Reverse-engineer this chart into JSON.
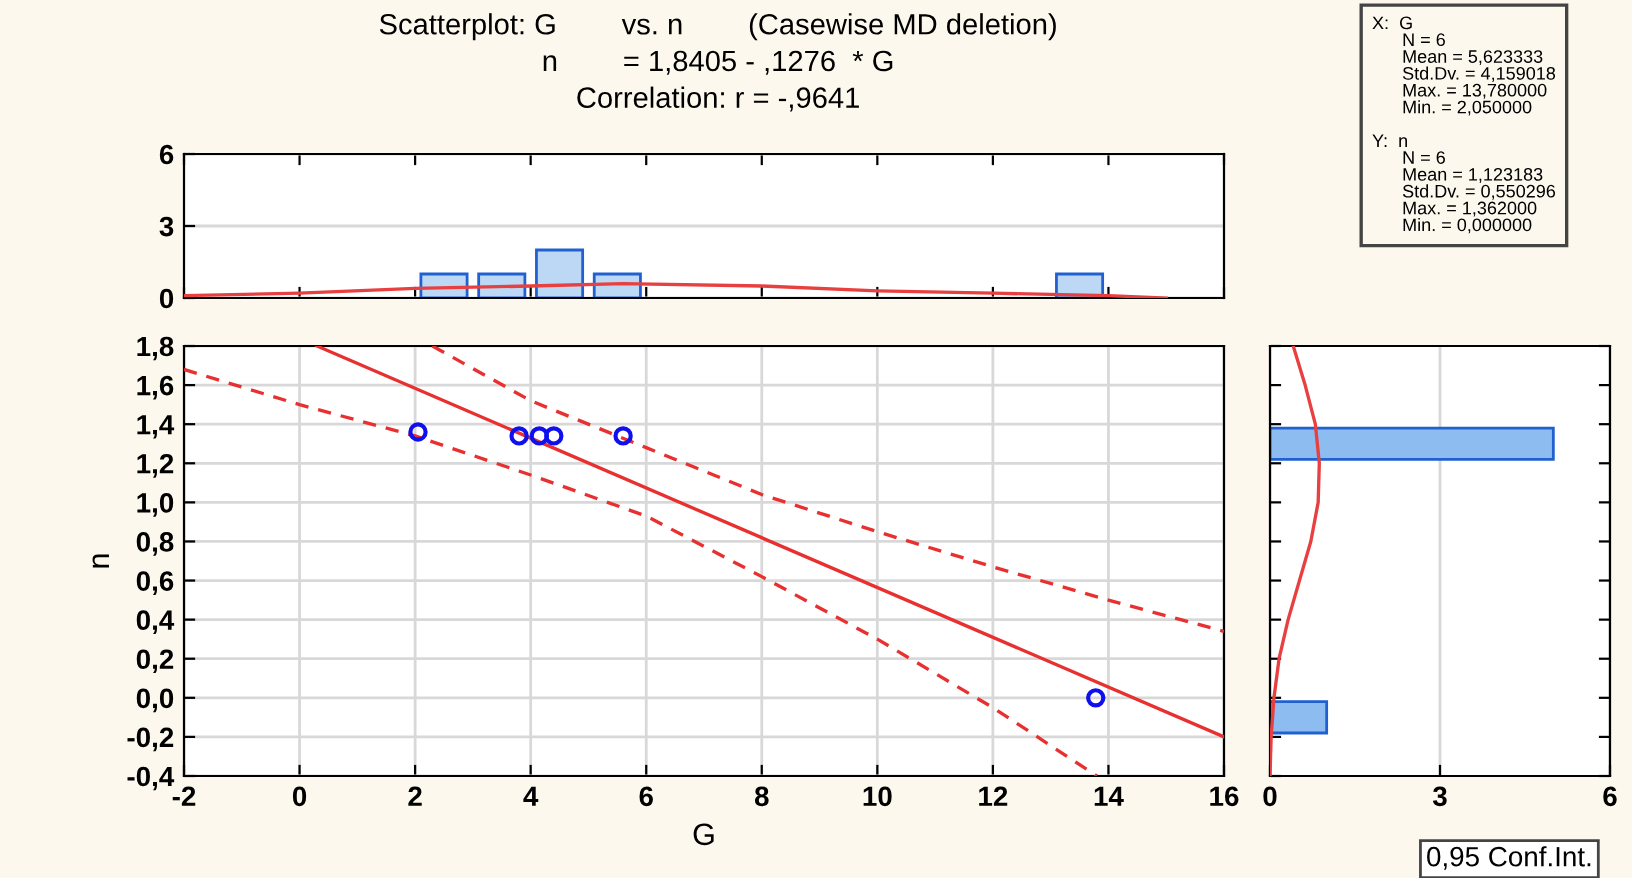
{
  "chart_data": [
    {
      "type": "histogram",
      "title": "Scatterplot: G        vs. n        (Casewise MD deletion)\nn        = 1,8405 - ,1276  * G\nCorrelation: r = -,9641",
      "bins": [
        2,
        3,
        4,
        5,
        6,
        7,
        8,
        9,
        10,
        11,
        12,
        13,
        14
      ],
      "values": [
        1,
        1,
        2,
        1,
        0,
        0,
        0,
        0,
        0,
        0,
        0,
        1
      ],
      "color": "#bcd8f5",
      "xlim": [
        -2,
        16
      ],
      "xticks": [
        {
          "value": -2,
          "label": null
        },
        {
          "value": 0,
          "label": null
        },
        {
          "value": 2,
          "label": null
        },
        {
          "value": 4,
          "label": null
        },
        {
          "value": 6,
          "label": null
        },
        {
          "value": 8,
          "label": null
        },
        {
          "value": 10,
          "label": null
        },
        {
          "value": 12,
          "label": null
        },
        {
          "value": 14,
          "label": null
        },
        {
          "value": 16,
          "label": null
        }
      ],
      "ylim": [
        0,
        6
      ],
      "yticks": [
        0,
        3,
        6
      ],
      "grid": "y",
      "tick_labels": "y",
      "series": [
        {
          "type": "line",
          "x": [
            -2,
            0,
            2,
            4,
            5.6,
            8,
            10,
            12,
            14,
            15
          ],
          "values": [
            0.1,
            0.2,
            0.4,
            0.5,
            0.6,
            0.5,
            0.3,
            0.2,
            0.1,
            0.0
          ],
          "color": "#e84040"
        }
      ]
    },
    {
      "type": "scatter",
      "xlabel": "G",
      "ylabel": "n",
      "xlim": [
        -2,
        16
      ],
      "xticks": [
        -2,
        0,
        2,
        4,
        6,
        8,
        10,
        12,
        14,
        16
      ],
      "ylim": [
        -0.4,
        1.8
      ],
      "yticks": [
        {
          "value": -0.4,
          "label": "-0,4"
        },
        {
          "value": -0.2,
          "label": "-0,2"
        },
        {
          "value": 0,
          "label": "0,0"
        },
        {
          "value": 0.2,
          "label": "0,2"
        },
        {
          "value": 0.4,
          "label": "0,4"
        },
        {
          "value": 0.6,
          "label": "0,6"
        },
        {
          "value": 0.8,
          "label": "0,8"
        },
        {
          "value": 1.0,
          "label": "1,0"
        },
        {
          "value": 1.2,
          "label": "1,2"
        },
        {
          "value": 1.4,
          "label": "1,4"
        },
        {
          "value": 1.6,
          "label": "1,6"
        },
        {
          "value": 1.8,
          "label": "1,8"
        }
      ],
      "grid": true,
      "series": [
        {
          "type": "scatter",
          "x": [
            2.05,
            3.8,
            4.15,
            4.4,
            5.6,
            13.78
          ],
          "values": [
            1.36,
            1.34,
            1.34,
            1.34,
            1.34,
            0
          ],
          "color": "#1010ee",
          "marker": "circle"
        },
        {
          "type": "line",
          "x": [
            0.3,
            16
          ],
          "values": [
            1.8,
            -0.2
          ],
          "color": "#e83030",
          "line_style": "solid"
        },
        {
          "type": "line",
          "x": [
            2.3,
            4,
            6,
            8,
            10,
            12,
            14,
            16
          ],
          "values": [
            1.8,
            1.52,
            1.28,
            1.04,
            0.85,
            0.67,
            0.5,
            0.34
          ],
          "color": "#e83030",
          "line_style": "dashed"
        },
        {
          "type": "line",
          "x": [
            -2,
            0,
            2,
            4,
            6,
            8,
            10,
            12,
            13.8
          ],
          "values": [
            1.68,
            1.5,
            1.34,
            1.14,
            0.93,
            0.62,
            0.3,
            -0.05,
            -0.4
          ],
          "color": "#e83030",
          "line_style": "dashed"
        }
      ]
    },
    {
      "type": "histogram",
      "orientation": "horizontal",
      "bins": [
        -0.2,
        0,
        0.2,
        0.4,
        0.6,
        0.8,
        1.0,
        1.2,
        1.4
      ],
      "values": [
        1,
        0,
        0,
        0,
        0,
        0,
        0,
        5
      ],
      "color": "#8cbcf0",
      "xlim": [
        0,
        6
      ],
      "xticks": [
        0,
        3,
        6
      ],
      "ylim": [
        -0.4,
        1.8
      ],
      "yticks": [
        {
          "value": -0.4,
          "label": null
        },
        {
          "value": -0.2,
          "label": null
        },
        {
          "value": 0,
          "label": null
        },
        {
          "value": 0.2,
          "label": null
        },
        {
          "value": 0.4,
          "label": null
        },
        {
          "value": 0.6,
          "label": null
        },
        {
          "value": 0.8,
          "label": null
        },
        {
          "value": 1.0,
          "label": null
        },
        {
          "value": 1.2,
          "label": null
        },
        {
          "value": 1.4,
          "label": null
        },
        {
          "value": 1.6,
          "label": null
        },
        {
          "value": 1.8,
          "label": null
        }
      ],
      "grid": "x",
      "tick_labels": "x",
      "annotations": [
        "X:  G\n      N = 6\n      Mean = 5,623333\n      Std.Dv. = 4,159018\n      Max. = 13,780000\n      Min. = 2,050000\n\nY:  n\n      N = 6\n      Mean = 1,123183\n      Std.Dv. = 0,550296\n      Max. = 1,362000\n      Min. = 0,000000",
        "0,95 Conf.Int."
      ],
      "series": [
        {
          "type": "line",
          "x": [
            -0.4,
            -0.2,
            0.0,
            0.2,
            0.4,
            0.6,
            0.8,
            1.0,
            1.2,
            1.4,
            1.6,
            1.8
          ],
          "values": [
            0.0,
            0.02,
            0.07,
            0.16,
            0.32,
            0.52,
            0.72,
            0.85,
            0.87,
            0.8,
            0.62,
            0.41
          ],
          "color": "#e84040"
        }
      ]
    }
  ]
}
